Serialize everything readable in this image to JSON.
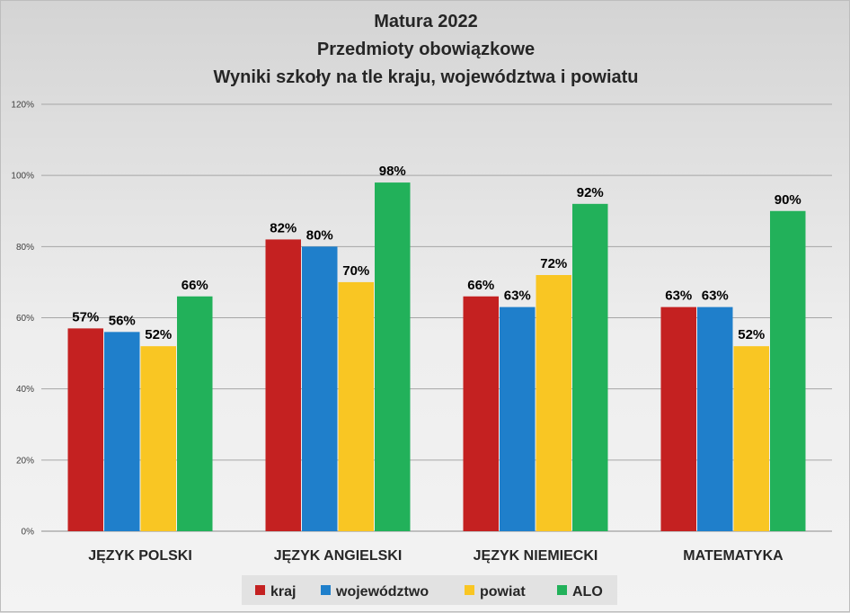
{
  "chart_data": {
    "type": "bar",
    "title_lines": [
      "Matura 2022",
      "Przedmioty obowiązkowe",
      "Wyniki szkoły na tle kraju, województwa i powiatu"
    ],
    "categories": [
      "JĘZYK POLSKI",
      "JĘZYK ANGIELSKI",
      "JĘZYK NIEMIECKI",
      "MATEMATYKA"
    ],
    "series": [
      {
        "name": "kraj",
        "color": "#c42121",
        "values": [
          57,
          82,
          66,
          63
        ]
      },
      {
        "name": "województwo",
        "color": "#1f7fcb",
        "values": [
          56,
          80,
          63,
          63
        ]
      },
      {
        "name": "powiat",
        "color": "#f9c623",
        "values": [
          52,
          70,
          72,
          52
        ]
      },
      {
        "name": "ALO",
        "color": "#22b15a",
        "values": [
          66,
          98,
          92,
          90
        ]
      }
    ],
    "ylim": [
      0,
      120
    ],
    "yticks": [
      0,
      20,
      40,
      60,
      80,
      100,
      120
    ],
    "ytick_labels": [
      "0%",
      "20%",
      "40%",
      "60%",
      "80%",
      "100%",
      "120%"
    ],
    "value_suffix": "%",
    "grid": true,
    "legend_position": "bottom"
  }
}
